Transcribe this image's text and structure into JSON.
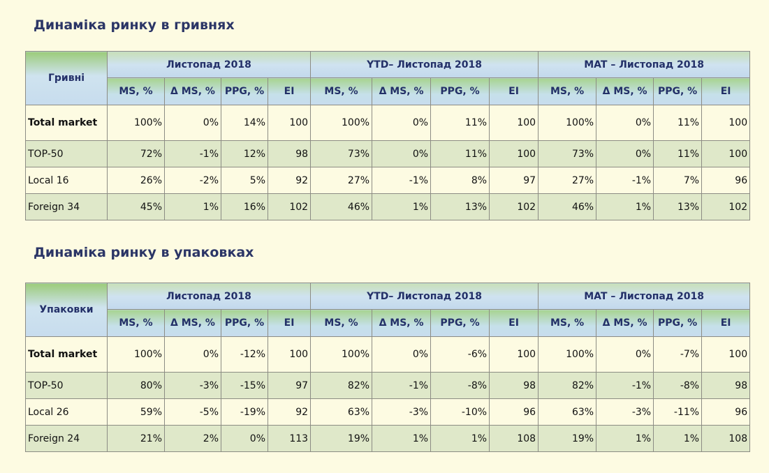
{
  "tables": [
    {
      "title": "Динаміка ринку в гривнях",
      "corner": "Гривні",
      "groups": [
        "Листопад 2018",
        "YTD–  Листопад 2018",
        "MAT – Листопад 2018"
      ],
      "columns": [
        "MS, %",
        "Δ MS, %",
        "PPG, %",
        "EI",
        "MS, %",
        "Δ MS, %",
        "PPG, %",
        "EI",
        "MS, %",
        "Δ MS, %",
        "PPG, %",
        "EI"
      ],
      "rows": [
        [
          "Total market",
          "100%",
          "0%",
          "14%",
          "100",
          "100%",
          "0%",
          "11%",
          "100",
          "100%",
          "0%",
          "11%",
          "100"
        ],
        [
          "TOP-50",
          "72%",
          "-1%",
          "12%",
          "98",
          "73%",
          "0%",
          "11%",
          "100",
          "73%",
          "0%",
          "11%",
          "100"
        ],
        [
          "Local 16",
          "26%",
          "-2%",
          "5%",
          "92",
          "27%",
          "-1%",
          "8%",
          "97",
          "27%",
          "-1%",
          "7%",
          "96"
        ],
        [
          "Foreign 34",
          "45%",
          "1%",
          "16%",
          "102",
          "46%",
          "1%",
          "13%",
          "102",
          "46%",
          "1%",
          "13%",
          "102"
        ]
      ]
    },
    {
      "title": "Динаміка ринку в упаковках",
      "corner": "Упаковки",
      "groups": [
        "Листопад 2018",
        "YTD–  Листопад 2018",
        "MAT – Листопад 2018"
      ],
      "columns": [
        "MS, %",
        "Δ MS, %",
        "PPG, %",
        "EI",
        "MS, %",
        "Δ MS, %",
        "PPG, %",
        "EI",
        "MS, %",
        "Δ MS, %",
        "PPG, %",
        "EI"
      ],
      "rows": [
        [
          "Total market",
          "100%",
          "0%",
          "-12%",
          "100",
          "100%",
          "0%",
          "-6%",
          "100",
          "100%",
          "0%",
          "-7%",
          "100"
        ],
        [
          "TOP-50",
          "80%",
          "-3%",
          "-15%",
          "97",
          "82%",
          "-1%",
          "-8%",
          "98",
          "82%",
          "-1%",
          "-8%",
          "98"
        ],
        [
          "Local 26",
          "59%",
          "-5%",
          "-19%",
          "92",
          "63%",
          "-3%",
          "-10%",
          "96",
          "63%",
          "-3%",
          "-11%",
          "96"
        ],
        [
          "Foreign 24",
          "21%",
          "2%",
          "0%",
          "113",
          "19%",
          "1%",
          "1%",
          "108",
          "19%",
          "1%",
          "1%",
          "108"
        ]
      ]
    }
  ]
}
